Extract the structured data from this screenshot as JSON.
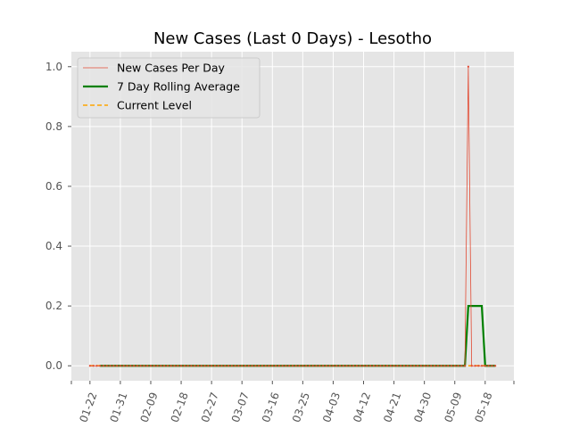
{
  "chart_data": {
    "type": "line",
    "title": "New Cases (Last 0 Days) - Lesotho",
    "xlabel": "",
    "ylabel": "",
    "x_start_date": "2020-01-22",
    "x_end_date": "2020-05-21",
    "x_tick_labels": [
      "01-22",
      "01-31",
      "02-09",
      "02-18",
      "02-27",
      "03-07",
      "03-16",
      "03-25",
      "04-03",
      "04-12",
      "04-21",
      "04-30",
      "05-09",
      "05-18"
    ],
    "y_ticks": [
      0.0,
      0.2,
      0.4,
      0.6,
      0.8,
      1.0
    ],
    "y_tick_labels": [
      "0.0",
      "0.2",
      "0.4",
      "0.6",
      "0.8",
      "1.0"
    ],
    "ylim": [
      -0.05,
      1.05
    ],
    "grid": true,
    "legend_position": "top-left",
    "series": [
      {
        "name": "New Cases Per Day",
        "color": "#e24a33",
        "style": "thin line with dot markers",
        "points": [
          {
            "date": "2020-01-22",
            "value": 0
          },
          {
            "date": "2020-05-12",
            "value": 0
          },
          {
            "date": "2020-05-13",
            "value": 1
          },
          {
            "date": "2020-05-14",
            "value": 0
          },
          {
            "date": "2020-05-21",
            "value": 0
          }
        ]
      },
      {
        "name": "7 Day Rolling Average",
        "color": "#008000",
        "style": "thick solid line",
        "points": [
          {
            "date": "2020-01-25",
            "value": 0
          },
          {
            "date": "2020-05-12",
            "value": 0
          },
          {
            "date": "2020-05-13",
            "value": 0.2
          },
          {
            "date": "2020-05-17",
            "value": 0.2
          },
          {
            "date": "2020-05-18",
            "value": 0
          },
          {
            "date": "2020-05-21",
            "value": 0
          }
        ]
      },
      {
        "name": "Current Level",
        "color": "#ffa500",
        "style": "dashed line",
        "points": [
          {
            "date": "2020-01-22",
            "value": 0
          },
          {
            "date": "2020-05-21",
            "value": 0
          }
        ]
      }
    ]
  }
}
